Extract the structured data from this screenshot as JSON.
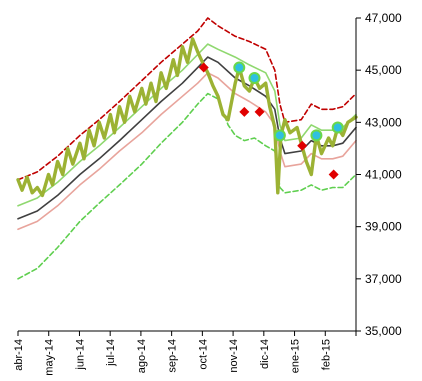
{
  "chart_data": {
    "type": "line",
    "title": "",
    "xlabel": "",
    "ylabel": "",
    "ylim": [
      35000,
      47000
    ],
    "y_ticks": [
      35000,
      37000,
      39000,
      41000,
      43000,
      45000,
      47000
    ],
    "y_tick_labels": [
      "35,000",
      "37,000",
      "39,000",
      "41,000",
      "43,000",
      "45,000",
      "47,000"
    ],
    "y_axis_position": "right",
    "x_ticks": [
      "abr-14",
      "may-14",
      "jun-14",
      "jul-14",
      "ago-14",
      "sep-14",
      "oct-14",
      "nov-14",
      "dic-14",
      "ene-15",
      "feb-15"
    ],
    "x_range": [
      "2014-04-01",
      "2015-02-28"
    ],
    "grid": false,
    "legend": "none",
    "series": [
      {
        "style": "dashed",
        "color": "#c00000",
        "points": [
          [
            "2014-04-01",
            40800
          ],
          [
            "2014-04-20",
            41100
          ],
          [
            "2014-05-10",
            41700
          ],
          [
            "2014-06-01",
            42500
          ],
          [
            "2014-06-20",
            43100
          ],
          [
            "2014-07-10",
            43800
          ],
          [
            "2014-08-01",
            44600
          ],
          [
            "2014-08-20",
            45300
          ],
          [
            "2014-09-10",
            46000
          ],
          [
            "2014-09-25",
            46500
          ],
          [
            "2014-10-05",
            47000
          ],
          [
            "2014-10-15",
            46700
          ],
          [
            "2014-11-01",
            46300
          ],
          [
            "2014-11-15",
            46100
          ],
          [
            "2014-12-01",
            45800
          ],
          [
            "2014-12-10",
            45000
          ],
          [
            "2014-12-15",
            43700
          ],
          [
            "2014-12-20",
            43000
          ],
          [
            "2015-01-05",
            43100
          ],
          [
            "2015-01-15",
            43700
          ],
          [
            "2015-01-25",
            43500
          ],
          [
            "2015-02-05",
            43500
          ],
          [
            "2015-02-15",
            43600
          ],
          [
            "2015-02-28",
            44100
          ]
        ]
      },
      {
        "style": "solid",
        "color": "#8fd86f",
        "points": [
          [
            "2014-04-01",
            39800
          ],
          [
            "2014-04-20",
            40100
          ],
          [
            "2014-05-10",
            40700
          ],
          [
            "2014-06-01",
            41500
          ],
          [
            "2014-06-20",
            42100
          ],
          [
            "2014-07-10",
            42800
          ],
          [
            "2014-08-01",
            43600
          ],
          [
            "2014-08-20",
            44300
          ],
          [
            "2014-09-10",
            45000
          ],
          [
            "2014-09-25",
            45600
          ],
          [
            "2014-10-05",
            46000
          ],
          [
            "2014-10-15",
            45800
          ],
          [
            "2014-11-01",
            45500
          ],
          [
            "2014-11-15",
            45200
          ],
          [
            "2014-12-01",
            44900
          ],
          [
            "2014-12-10",
            44200
          ],
          [
            "2014-12-15",
            42900
          ],
          [
            "2014-12-20",
            42300
          ],
          [
            "2015-01-05",
            42400
          ],
          [
            "2015-01-15",
            42900
          ],
          [
            "2015-01-25",
            42700
          ],
          [
            "2015-02-05",
            42700
          ],
          [
            "2015-02-15",
            42800
          ],
          [
            "2015-02-28",
            43300
          ]
        ]
      },
      {
        "style": "solid",
        "color": "#404040",
        "points": [
          [
            "2014-04-01",
            39300
          ],
          [
            "2014-04-20",
            39600
          ],
          [
            "2014-05-10",
            40200
          ],
          [
            "2014-06-01",
            41000
          ],
          [
            "2014-06-20",
            41600
          ],
          [
            "2014-07-10",
            42300
          ],
          [
            "2014-08-01",
            43100
          ],
          [
            "2014-08-20",
            43800
          ],
          [
            "2014-09-10",
            44500
          ],
          [
            "2014-09-25",
            45100
          ],
          [
            "2014-10-05",
            45500
          ],
          [
            "2014-10-15",
            45300
          ],
          [
            "2014-11-01",
            44700
          ],
          [
            "2014-11-15",
            44400
          ],
          [
            "2014-12-01",
            44000
          ],
          [
            "2014-12-10",
            43500
          ],
          [
            "2014-12-15",
            42400
          ],
          [
            "2014-12-20",
            41800
          ],
          [
            "2015-01-05",
            41900
          ],
          [
            "2015-01-15",
            42300
          ],
          [
            "2015-01-25",
            42100
          ],
          [
            "2015-02-05",
            42100
          ],
          [
            "2015-02-15",
            42200
          ],
          [
            "2015-02-28",
            42800
          ]
        ]
      },
      {
        "style": "solid",
        "color": "#e8a49c",
        "points": [
          [
            "2014-04-01",
            38900
          ],
          [
            "2014-04-20",
            39200
          ],
          [
            "2014-05-10",
            39800
          ],
          [
            "2014-06-01",
            40600
          ],
          [
            "2014-06-20",
            41200
          ],
          [
            "2014-07-10",
            41900
          ],
          [
            "2014-08-01",
            42600
          ],
          [
            "2014-08-20",
            43300
          ],
          [
            "2014-09-10",
            44000
          ],
          [
            "2014-09-25",
            44500
          ],
          [
            "2014-10-05",
            44900
          ],
          [
            "2014-10-15",
            44700
          ],
          [
            "2014-11-01",
            44100
          ],
          [
            "2014-11-15",
            43800
          ],
          [
            "2014-12-01",
            43400
          ],
          [
            "2014-12-10",
            42900
          ],
          [
            "2014-12-15",
            41900
          ],
          [
            "2014-12-20",
            41300
          ],
          [
            "2015-01-05",
            41400
          ],
          [
            "2015-01-15",
            41800
          ],
          [
            "2015-01-25",
            41600
          ],
          [
            "2015-02-05",
            41600
          ],
          [
            "2015-02-15",
            41700
          ],
          [
            "2015-02-28",
            42300
          ]
        ]
      },
      {
        "style": "dashed",
        "color": "#5fcf4f",
        "points": [
          [
            "2014-04-01",
            37000
          ],
          [
            "2014-04-20",
            37400
          ],
          [
            "2014-05-10",
            38200
          ],
          [
            "2014-06-01",
            39200
          ],
          [
            "2014-06-20",
            39900
          ],
          [
            "2014-07-10",
            40600
          ],
          [
            "2014-08-01",
            41400
          ],
          [
            "2014-08-20",
            42200
          ],
          [
            "2014-09-10",
            43000
          ],
          [
            "2014-09-25",
            43700
          ],
          [
            "2014-10-05",
            44100
          ],
          [
            "2014-10-15",
            43900
          ],
          [
            "2014-10-25",
            42900
          ],
          [
            "2014-11-01",
            42500
          ],
          [
            "2014-11-10",
            42300
          ],
          [
            "2014-11-20",
            42400
          ],
          [
            "2014-12-01",
            42100
          ],
          [
            "2014-12-10",
            41900
          ],
          [
            "2014-12-15",
            40500
          ],
          [
            "2014-12-20",
            40300
          ],
          [
            "2015-01-05",
            40400
          ],
          [
            "2015-01-15",
            40600
          ],
          [
            "2015-01-25",
            40400
          ],
          [
            "2015-02-05",
            40500
          ],
          [
            "2015-02-15",
            40500
          ],
          [
            "2015-02-28",
            41000
          ]
        ]
      },
      {
        "style": "solid-thick",
        "color": "#9cb234",
        "points": [
          [
            "2014-04-01",
            40800
          ],
          [
            "2014-04-05",
            40400
          ],
          [
            "2014-04-10",
            40900
          ],
          [
            "2014-04-15",
            40300
          ],
          [
            "2014-04-20",
            40500
          ],
          [
            "2014-04-25",
            40200
          ],
          [
            "2014-05-01",
            41000
          ],
          [
            "2014-05-05",
            40600
          ],
          [
            "2014-05-10",
            41500
          ],
          [
            "2014-05-15",
            41000
          ],
          [
            "2014-05-20",
            42000
          ],
          [
            "2014-05-25",
            41400
          ],
          [
            "2014-06-01",
            42200
          ],
          [
            "2014-06-05",
            41600
          ],
          [
            "2014-06-10",
            42700
          ],
          [
            "2014-06-15",
            42100
          ],
          [
            "2014-06-20",
            43000
          ],
          [
            "2014-06-25",
            42400
          ],
          [
            "2014-07-01",
            43300
          ],
          [
            "2014-07-05",
            42600
          ],
          [
            "2014-07-10",
            43600
          ],
          [
            "2014-07-15",
            43000
          ],
          [
            "2014-07-20",
            44000
          ],
          [
            "2014-07-25",
            43400
          ],
          [
            "2014-08-01",
            44300
          ],
          [
            "2014-08-05",
            43700
          ],
          [
            "2014-08-10",
            44500
          ],
          [
            "2014-08-15",
            43800
          ],
          [
            "2014-08-20",
            44900
          ],
          [
            "2014-08-25",
            44300
          ],
          [
            "2014-09-01",
            45400
          ],
          [
            "2014-09-05",
            44800
          ],
          [
            "2014-09-10",
            45900
          ],
          [
            "2014-09-15",
            45300
          ],
          [
            "2014-09-20",
            46200
          ],
          [
            "2014-09-25",
            45700
          ],
          [
            "2014-10-01",
            45200
          ],
          [
            "2014-10-05",
            44900
          ],
          [
            "2014-10-10",
            44400
          ],
          [
            "2014-10-15",
            44000
          ],
          [
            "2014-10-20",
            43300
          ],
          [
            "2014-10-25",
            43100
          ],
          [
            "2014-11-01",
            44500
          ],
          [
            "2014-11-05",
            45100
          ],
          [
            "2014-11-10",
            44400
          ],
          [
            "2014-11-15",
            44200
          ],
          [
            "2014-11-20",
            44700
          ],
          [
            "2014-11-25",
            44300
          ],
          [
            "2014-12-01",
            44500
          ],
          [
            "2014-12-05",
            43600
          ],
          [
            "2014-12-10",
            42800
          ],
          [
            "2014-12-13",
            40300
          ],
          [
            "2014-12-16",
            42500
          ],
          [
            "2014-12-20",
            43100
          ],
          [
            "2014-12-25",
            42600
          ],
          [
            "2015-01-01",
            42800
          ],
          [
            "2015-01-05",
            42200
          ],
          [
            "2015-01-10",
            41500
          ],
          [
            "2015-01-15",
            41000
          ],
          [
            "2015-01-20",
            42500
          ],
          [
            "2015-01-25",
            41800
          ],
          [
            "2015-02-01",
            42400
          ],
          [
            "2015-02-05",
            42100
          ],
          [
            "2015-02-10",
            42800
          ],
          [
            "2015-02-15",
            42500
          ],
          [
            "2015-02-20",
            43000
          ],
          [
            "2015-02-28",
            43200
          ]
        ]
      }
    ],
    "markers": {
      "diamonds": {
        "shape": "diamond",
        "color": "#e00000",
        "points": [
          [
            "2014-10-01",
            45100
          ],
          [
            "2014-11-10",
            43400
          ],
          [
            "2014-11-25",
            43400
          ],
          [
            "2015-01-06",
            42100
          ],
          [
            "2015-02-06",
            41000
          ]
        ]
      },
      "circles": {
        "shape": "circle",
        "fill": "#2fc0e0",
        "stroke": "#6ad84a",
        "points": [
          [
            "2014-11-05",
            45100
          ],
          [
            "2014-11-20",
            44700
          ],
          [
            "2014-12-15",
            42500
          ],
          [
            "2015-01-20",
            42500
          ],
          [
            "2015-02-10",
            42800
          ]
        ]
      }
    }
  }
}
